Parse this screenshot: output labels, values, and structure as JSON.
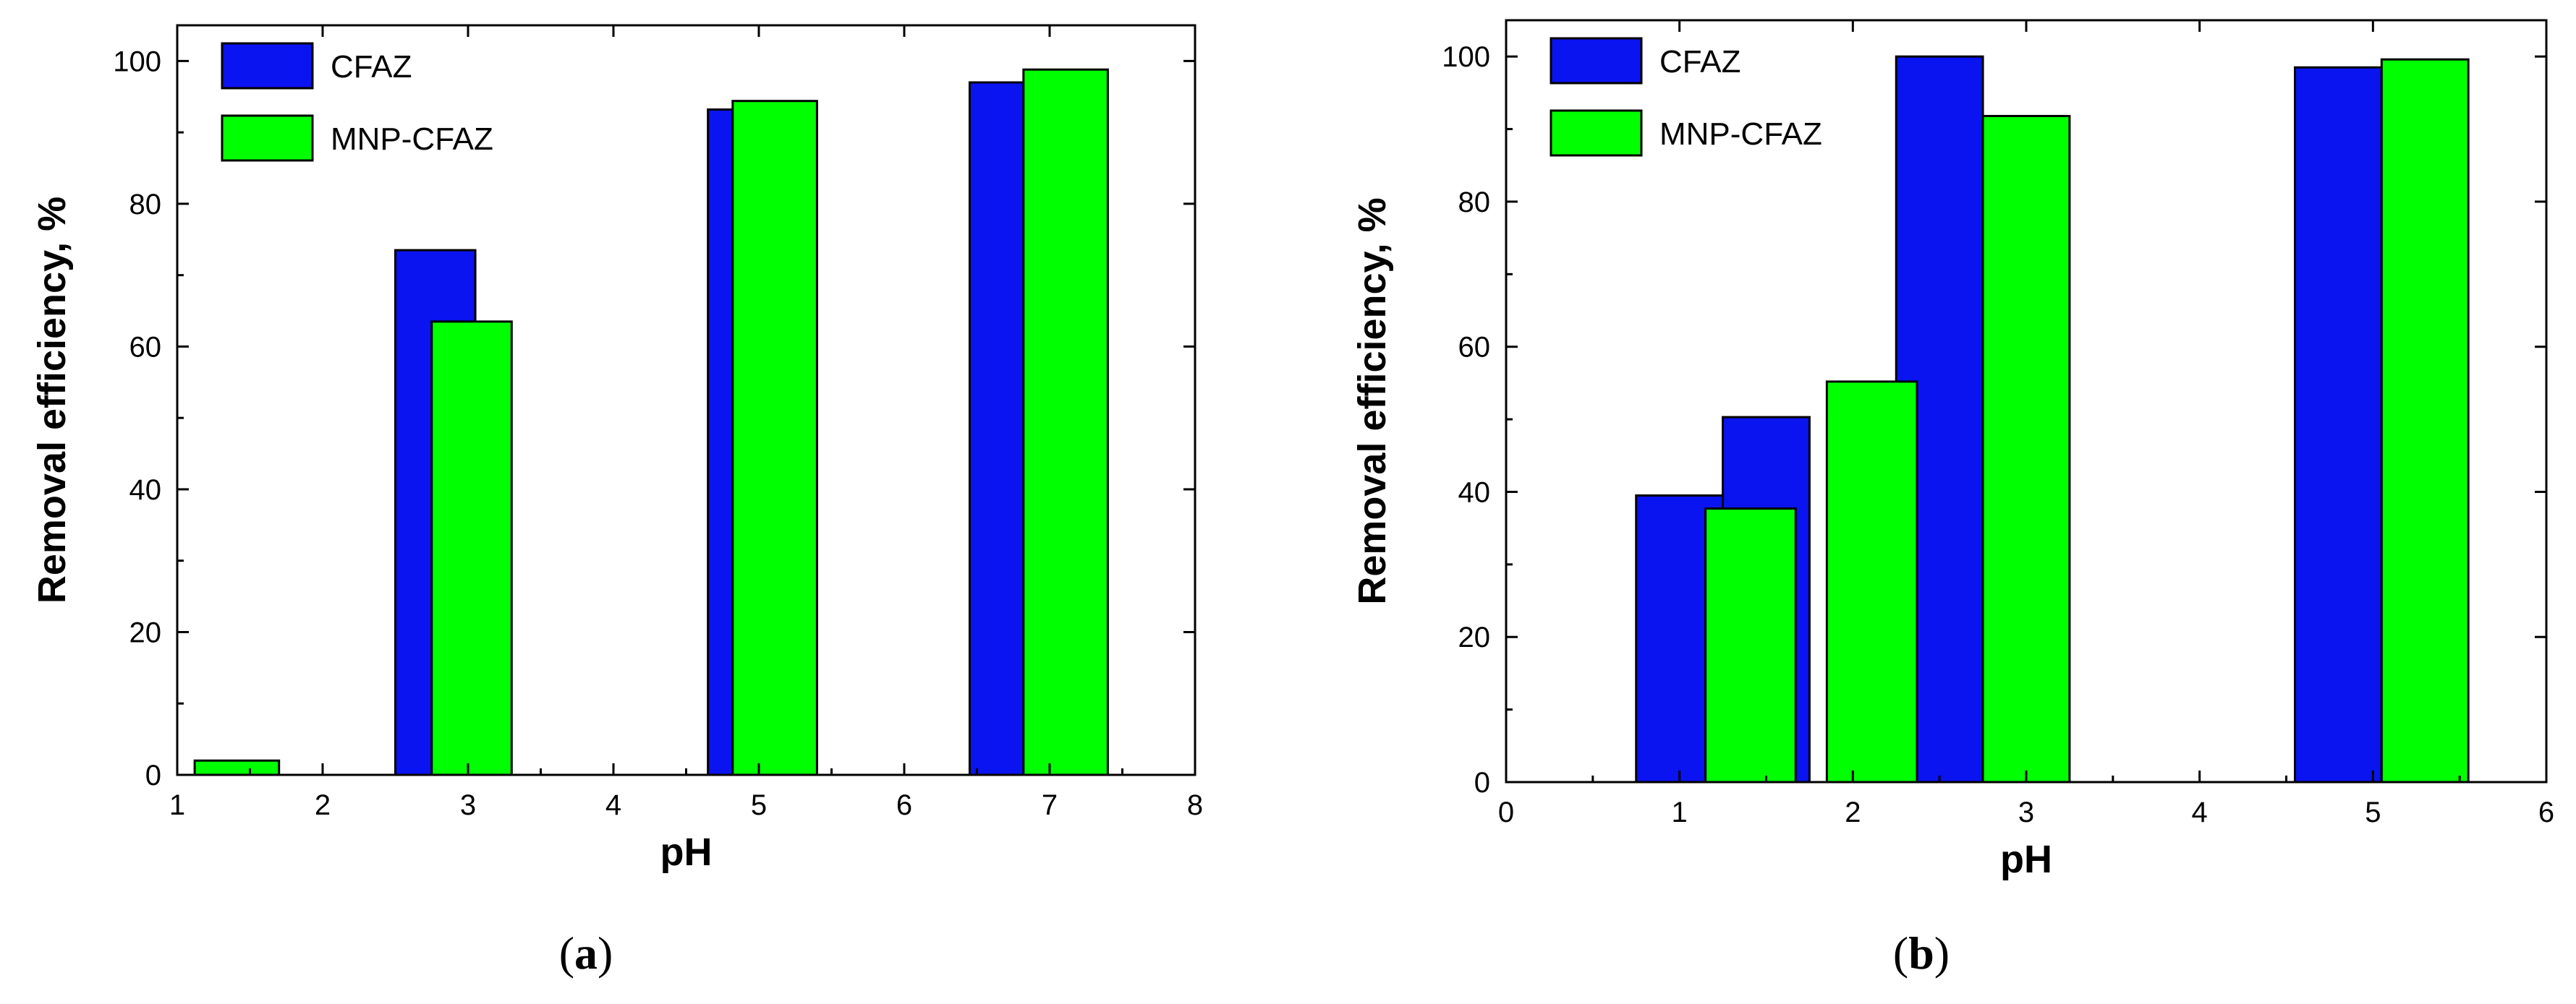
{
  "colors": {
    "CFAZ": "#0a14f0",
    "MNP-CFAZ": "#00ff00",
    "axis": "#000000"
  },
  "chart_data": [
    {
      "type": "bar",
      "panel_label": "a",
      "xlabel": "pH",
      "ylabel": "Removal efficiency, %",
      "xlim": [
        1,
        8
      ],
      "ylim": [
        0,
        105
      ],
      "xticks": [
        1,
        2,
        3,
        4,
        5,
        6,
        7,
        8
      ],
      "yticks": [
        0,
        20,
        40,
        60,
        80,
        100
      ],
      "legend": {
        "position": "top-left",
        "entries": [
          "CFAZ",
          "MNP-CFAZ"
        ]
      },
      "series": [
        {
          "name": "CFAZ",
          "bars": [
            {
              "x": [
                2.5,
                3.05
              ],
              "value": 73.5
            },
            {
              "x": [
                4.65,
                5.25
              ],
              "value": 93.2
            },
            {
              "x": [
                6.45,
                7.0
              ],
              "value": 97.0
            }
          ]
        },
        {
          "name": "MNP-CFAZ",
          "bars": [
            {
              "x": [
                1.12,
                1.7
              ],
              "value": 2.0
            },
            {
              "x": [
                2.75,
                3.3
              ],
              "value": 63.5
            },
            {
              "x": [
                4.82,
                5.4
              ],
              "value": 94.4
            },
            {
              "x": [
                6.82,
                7.4
              ],
              "value": 98.8
            }
          ]
        }
      ]
    },
    {
      "type": "bar",
      "panel_label": "b",
      "xlabel": "pH",
      "ylabel": "Removal efficiency, %",
      "xlim": [
        0,
        6
      ],
      "ylim": [
        0,
        105
      ],
      "xticks": [
        0,
        1,
        2,
        3,
        4,
        5,
        6
      ],
      "yticks": [
        0,
        20,
        40,
        60,
        80,
        100
      ],
      "legend": {
        "position": "top-left",
        "entries": [
          "CFAZ",
          "MNP-CFAZ"
        ]
      },
      "series": [
        {
          "name": "CFAZ",
          "bars": [
            {
              "x": [
                0.75,
                1.25
              ],
              "value": 39.5
            },
            {
              "x": [
                1.25,
                1.75
              ],
              "value": 50.3
            },
            {
              "x": [
                2.25,
                2.75
              ],
              "value": 100.0
            },
            {
              "x": [
                4.55,
                5.05
              ],
              "value": 98.5
            }
          ]
        },
        {
          "name": "MNP-CFAZ",
          "bars": [
            {
              "x": [
                1.15,
                1.67
              ],
              "value": 37.7
            },
            {
              "x": [
                1.85,
                2.37
              ],
              "value": 55.2
            },
            {
              "x": [
                2.75,
                3.25
              ],
              "value": 91.8
            },
            {
              "x": [
                5.05,
                5.55
              ],
              "value": 99.6
            }
          ]
        }
      ]
    }
  ]
}
